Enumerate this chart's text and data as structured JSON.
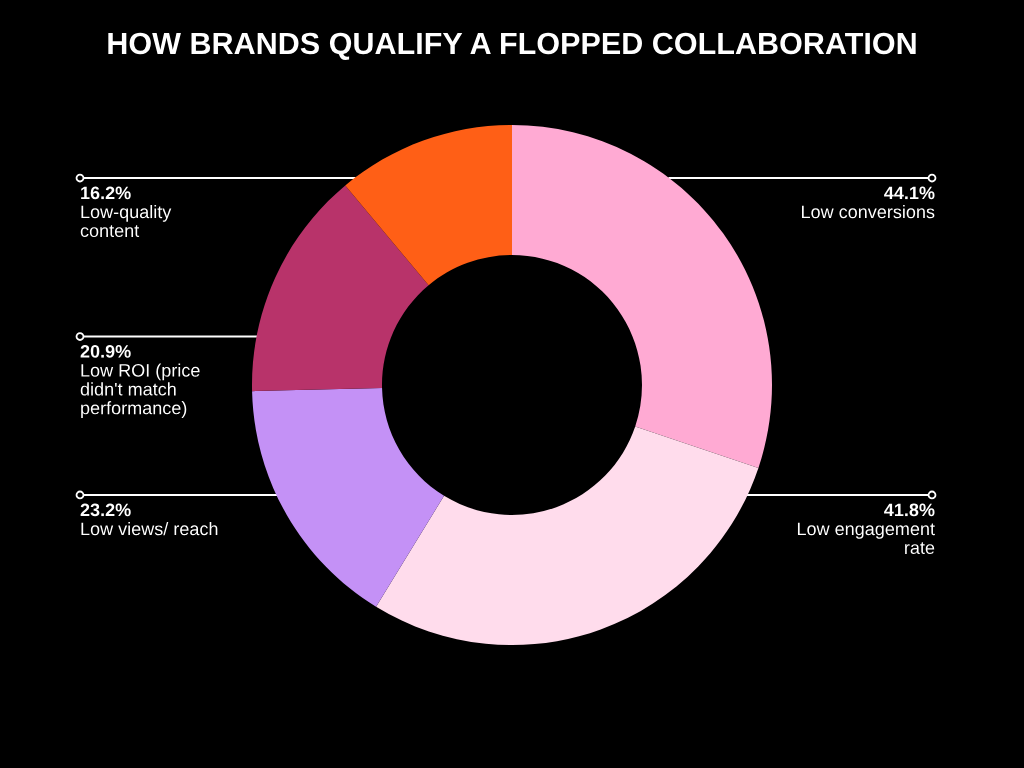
{
  "chart_data": {
    "type": "donut",
    "title": "HOW BRANDS QUALIFY A FLOPPED COLLABORATION",
    "categories": [
      "Low conversions",
      "Low engagement rate",
      "Low views/ reach",
      "Low ROI (price didn't match performance)",
      "Low-quality content"
    ],
    "values": [
      44.1,
      41.8,
      23.2,
      20.9,
      16.2
    ],
    "value_labels": [
      "44.1%",
      "41.8%",
      "23.2%",
      "20.9%",
      "16.2%"
    ],
    "colors": [
      "#ffaad3",
      "#ffdcec",
      "#c491f6",
      "#b8336a",
      "#ff5f16"
    ]
  }
}
